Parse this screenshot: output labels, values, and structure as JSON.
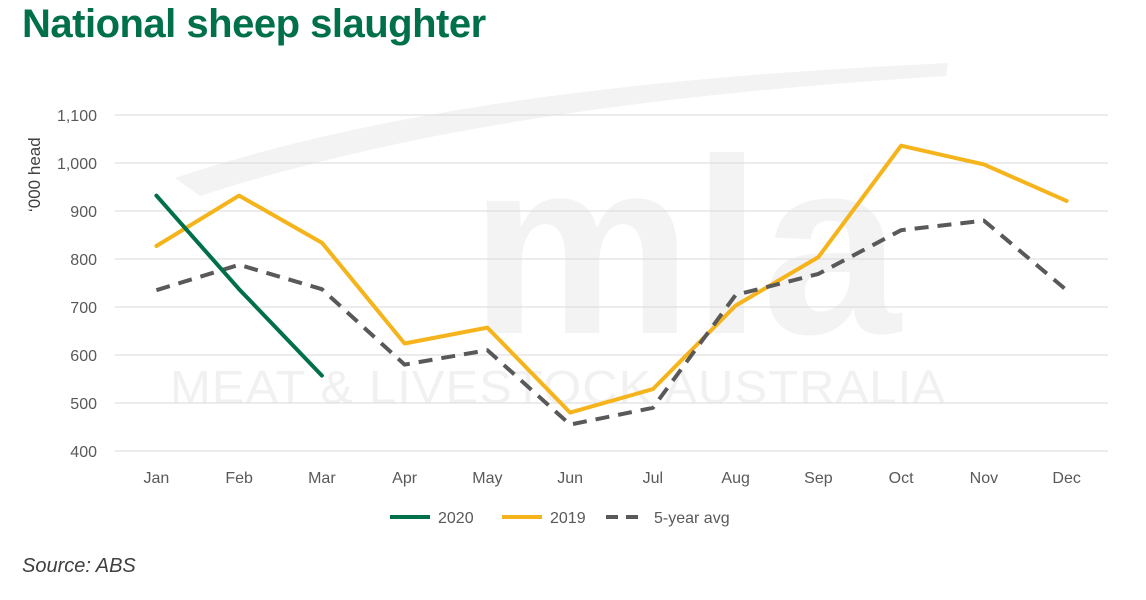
{
  "title": "National sheep slaughter",
  "source": "Source: ABS",
  "watermark": {
    "logo": "mla",
    "name": "MEAT & LIVESTOCK AUSTRALIA"
  },
  "colors": {
    "title": "#00704a",
    "series_2020": "#00704a",
    "series_2019": "#f5b41b",
    "series_avg": "#595959",
    "grid": "#d9d9d9"
  },
  "chart_data": {
    "type": "line",
    "ylabel": "‘000 head",
    "xlabel": "",
    "ylim": [
      400,
      1100
    ],
    "yticks": [
      400,
      500,
      600,
      700,
      800,
      900,
      1000,
      1100
    ],
    "ytick_labels": [
      "400",
      "500",
      "600",
      "700",
      "800",
      "900",
      "1,000",
      "1,100"
    ],
    "grid": true,
    "legend_position": "bottom",
    "categories": [
      "Jan",
      "Feb",
      "Mar",
      "Apr",
      "May",
      "Jun",
      "Jul",
      "Aug",
      "Sep",
      "Oct",
      "Nov",
      "Dec"
    ],
    "series": [
      {
        "name": "2020",
        "style": "solid",
        "color": "#00704a",
        "values": [
          932,
          737,
          557,
          null,
          null,
          null,
          null,
          null,
          null,
          null,
          null,
          null
        ]
      },
      {
        "name": "2019",
        "style": "solid",
        "color": "#f5b41b",
        "values": [
          827,
          932,
          834,
          624,
          657,
          480,
          529,
          703,
          804,
          1036,
          997,
          921
        ]
      },
      {
        "name": "5-year avg",
        "style": "dashed",
        "color": "#595959",
        "values": [
          735,
          788,
          737,
          580,
          610,
          455,
          490,
          725,
          769,
          860,
          880,
          735
        ]
      }
    ]
  }
}
